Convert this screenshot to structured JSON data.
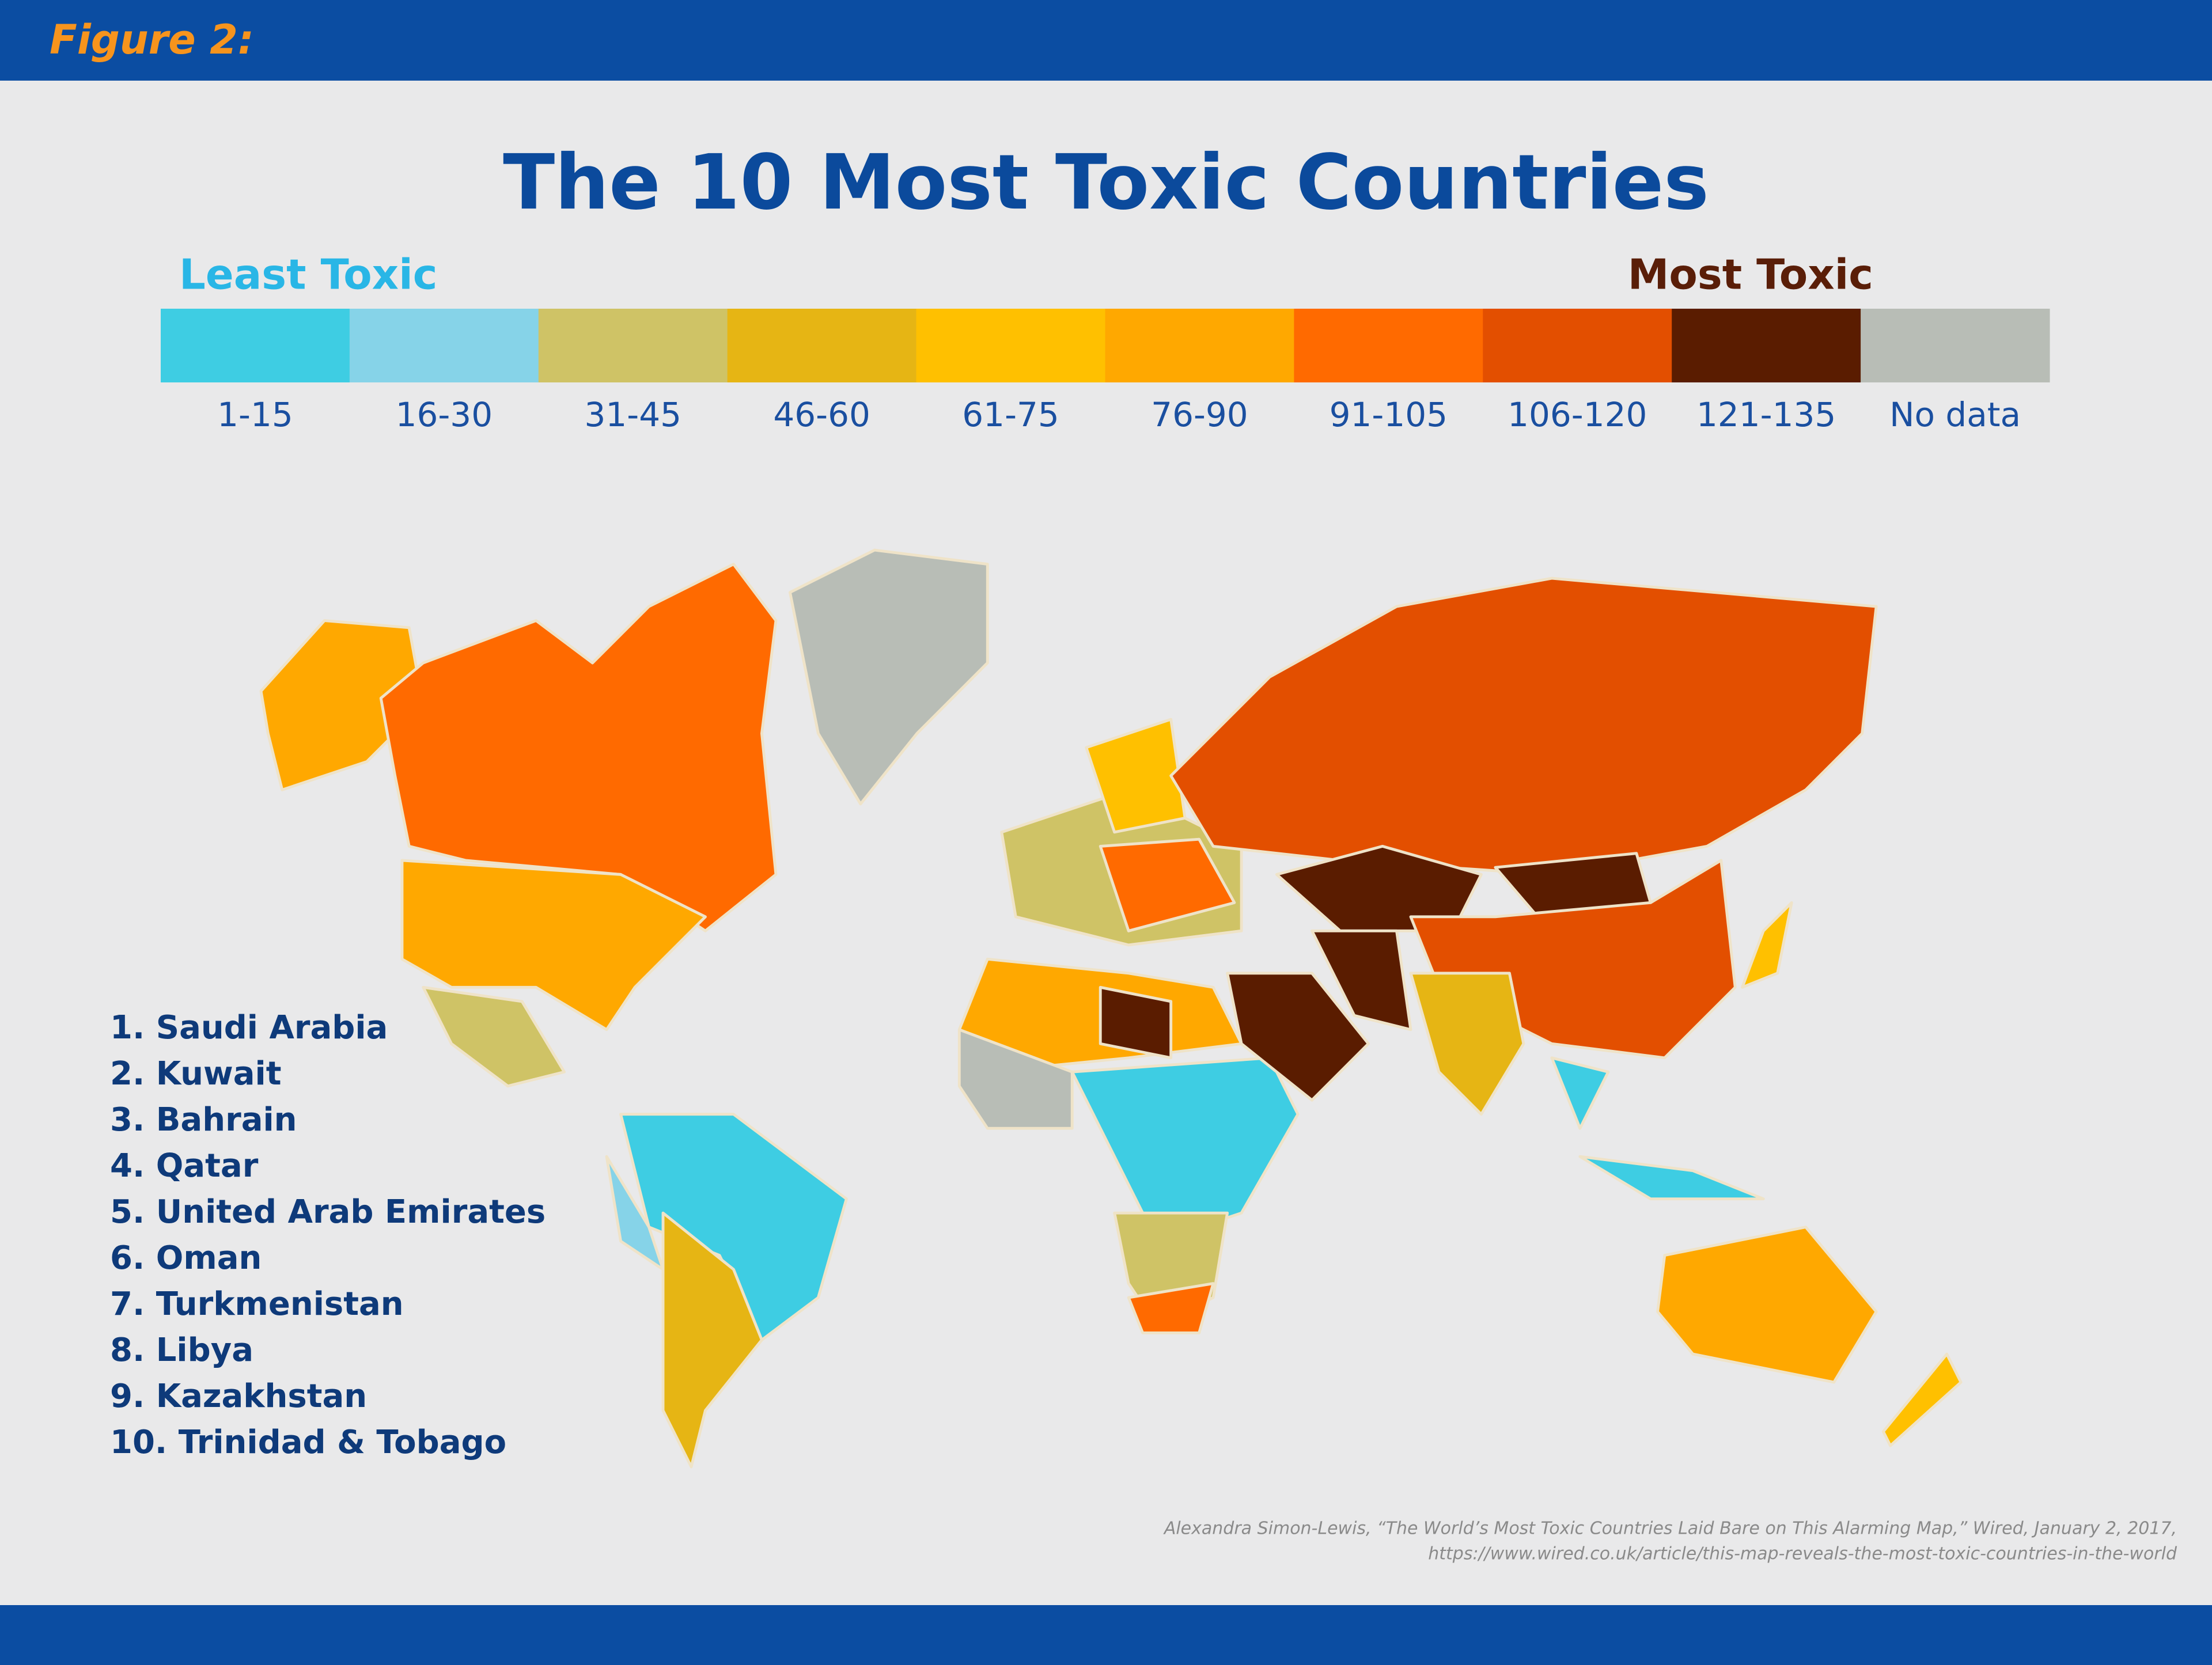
{
  "header": {
    "label": "Figure 2:"
  },
  "title": "The 10 Most Toxic Countries",
  "legend": {
    "low_label": "Least Toxic",
    "high_label": "Most Toxic",
    "bins": [
      {
        "label": "1-15",
        "color": "#3ecde3"
      },
      {
        "label": "16-30",
        "color": "#86d3e8"
      },
      {
        "label": "31-45",
        "color": "#cfc366"
      },
      {
        "label": "46-60",
        "color": "#e6b514"
      },
      {
        "label": "61-75",
        "color": "#ffc000"
      },
      {
        "label": "76-90",
        "color": "#ffa800"
      },
      {
        "label": "91-105",
        "color": "#ff6a00"
      },
      {
        "label": "106-120",
        "color": "#e34f00"
      },
      {
        "label": "121-135",
        "color": "#5a1c00"
      },
      {
        "label": "No data",
        "color": "#b8bdb6"
      }
    ]
  },
  "ranking": [
    "1. Saudi Arabia",
    "2. Kuwait",
    "3. Bahrain",
    "4. Qatar",
    "5. United Arab Emirates",
    "6. Oman",
    "7. Turkmenistan",
    "8. Libya",
    "9. Kazakhstan",
    "10. Trinidad & Tobago"
  ],
  "citation": [
    "Alexandra Simon-Lewis, “The World’s Most Toxic Countries Laid Bare on This Alarming Map,” Wired, January 2, 2017,",
    "https://www.wired.co.uk/article/this-map-reveals-the-most-toxic-countries-in-the-world"
  ]
}
